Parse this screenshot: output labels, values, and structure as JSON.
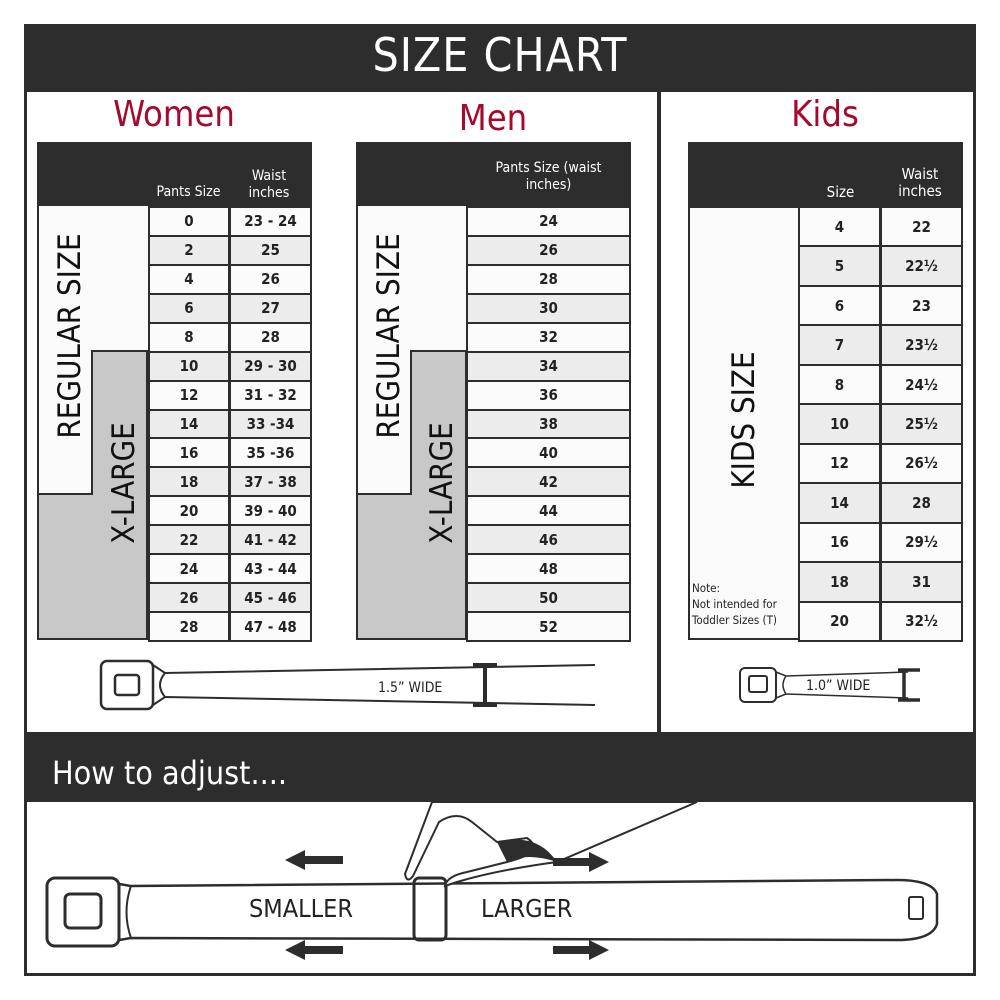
{
  "title": "SIZE CHART",
  "women": {
    "title": "Women",
    "col1": "Pants Size",
    "col2": "Waist inches",
    "regular_label": "REGULAR SIZE",
    "xlarge_label": "X-LARGE",
    "rows": [
      [
        "0",
        "23 - 24"
      ],
      [
        "2",
        "25"
      ],
      [
        "4",
        "26"
      ],
      [
        "6",
        "27"
      ],
      [
        "8",
        "28"
      ],
      [
        "10",
        "29 - 30"
      ],
      [
        "12",
        "31 - 32"
      ],
      [
        "14",
        "33 -34"
      ],
      [
        "16",
        "35 -36"
      ],
      [
        "18",
        "37 - 38"
      ],
      [
        "20",
        "39 - 40"
      ],
      [
        "22",
        "41 - 42"
      ],
      [
        "24",
        "43 - 44"
      ],
      [
        "26",
        "45 - 46"
      ],
      [
        "28",
        "47 - 48"
      ]
    ],
    "belt_width": "1.5” WIDE"
  },
  "men": {
    "title": "Men",
    "col1": "Pants Size (waist inches)",
    "regular_label": "REGULAR SIZE",
    "xlarge_label": "X-LARGE",
    "rows": [
      "24",
      "26",
      "28",
      "30",
      "32",
      "34",
      "36",
      "38",
      "40",
      "42",
      "44",
      "46",
      "48",
      "50",
      "52"
    ]
  },
  "kids": {
    "title": "Kids",
    "col1": "Size",
    "col2": "Waist inches",
    "label": "KIDS SIZE",
    "note_title": "Note:",
    "note": "Not intended for Toddler Sizes (T)",
    "rows": [
      [
        "4",
        "22"
      ],
      [
        "5",
        "22½"
      ],
      [
        "6",
        "23"
      ],
      [
        "7",
        "23½"
      ],
      [
        "8",
        "24½"
      ],
      [
        "10",
        "25½"
      ],
      [
        "12",
        "26½"
      ],
      [
        "14",
        "28"
      ],
      [
        "16",
        "29½"
      ],
      [
        "18",
        "31"
      ],
      [
        "20",
        "32½"
      ]
    ],
    "belt_width": "1.0” WIDE"
  },
  "adjust": {
    "title": "How to adjust....",
    "smaller": "SMALLER",
    "larger": "LARGER"
  },
  "colors": {
    "dark": "#2d2d2d",
    "accent": "#a50a2e",
    "xlarge_fill": "#c8c8c8"
  }
}
